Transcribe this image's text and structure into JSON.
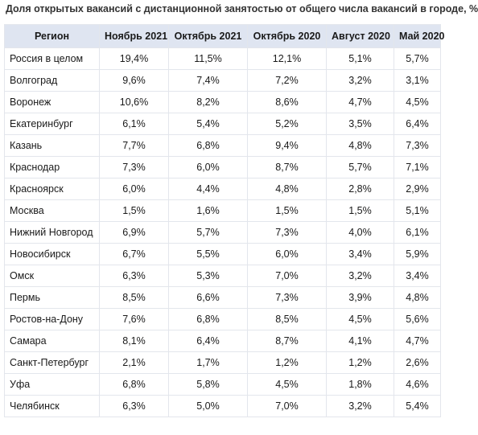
{
  "title": "Доля открытых вакансий с дистанционной занятостью от общего числа вакансий в городе, %",
  "table": {
    "headers": [
      "Регион",
      "Ноябрь 2021",
      "Октябрь 2021",
      "Октябрь 2020",
      "Август 2020",
      "Май 2020"
    ],
    "rows": [
      [
        "Россия в целом",
        "19,4%",
        "11,5%",
        "12,1%",
        "5,1%",
        "5,7%"
      ],
      [
        "Волгоград",
        "9,6%",
        "7,4%",
        "7,2%",
        "3,2%",
        "3,1%"
      ],
      [
        "Воронеж",
        "10,6%",
        "8,2%",
        "8,6%",
        "4,7%",
        "4,5%"
      ],
      [
        "Екатеринбург",
        "6,1%",
        "5,4%",
        "5,2%",
        "3,5%",
        "6,4%"
      ],
      [
        "Казань",
        "7,7%",
        "6,8%",
        "9,4%",
        "4,8%",
        "7,3%"
      ],
      [
        "Краснодар",
        "7,3%",
        "6,0%",
        "8,7%",
        "5,7%",
        "7,1%"
      ],
      [
        "Красноярск",
        "6,0%",
        "4,4%",
        "4,8%",
        "2,8%",
        "2,9%"
      ],
      [
        "Москва",
        "1,5%",
        "1,6%",
        "1,5%",
        "1,5%",
        "5,1%"
      ],
      [
        "Нижний Новгород",
        "6,9%",
        "5,7%",
        "7,3%",
        "4,0%",
        "6,1%"
      ],
      [
        "Новосибирск",
        "6,7%",
        "5,5%",
        "6,0%",
        "3,4%",
        "5,9%"
      ],
      [
        "Омск",
        "6,3%",
        "5,3%",
        "7,0%",
        "3,2%",
        "3,4%"
      ],
      [
        "Пермь",
        "8,5%",
        "6,6%",
        "7,3%",
        "3,9%",
        "4,8%"
      ],
      [
        "Ростов-на-Дону",
        "7,6%",
        "6,8%",
        "8,5%",
        "4,5%",
        "5,6%"
      ],
      [
        "Самара",
        "8,1%",
        "6,4%",
        "8,7%",
        "4,1%",
        "4,7%"
      ],
      [
        "Санкт-Петербург",
        "2,1%",
        "1,7%",
        "1,2%",
        "1,2%",
        "2,6%"
      ],
      [
        "Уфа",
        "6,8%",
        "5,8%",
        "4,5%",
        "1,8%",
        "4,6%"
      ],
      [
        "Челябинск",
        "6,3%",
        "5,0%",
        "7,0%",
        "3,2%",
        "5,4%"
      ]
    ]
  }
}
